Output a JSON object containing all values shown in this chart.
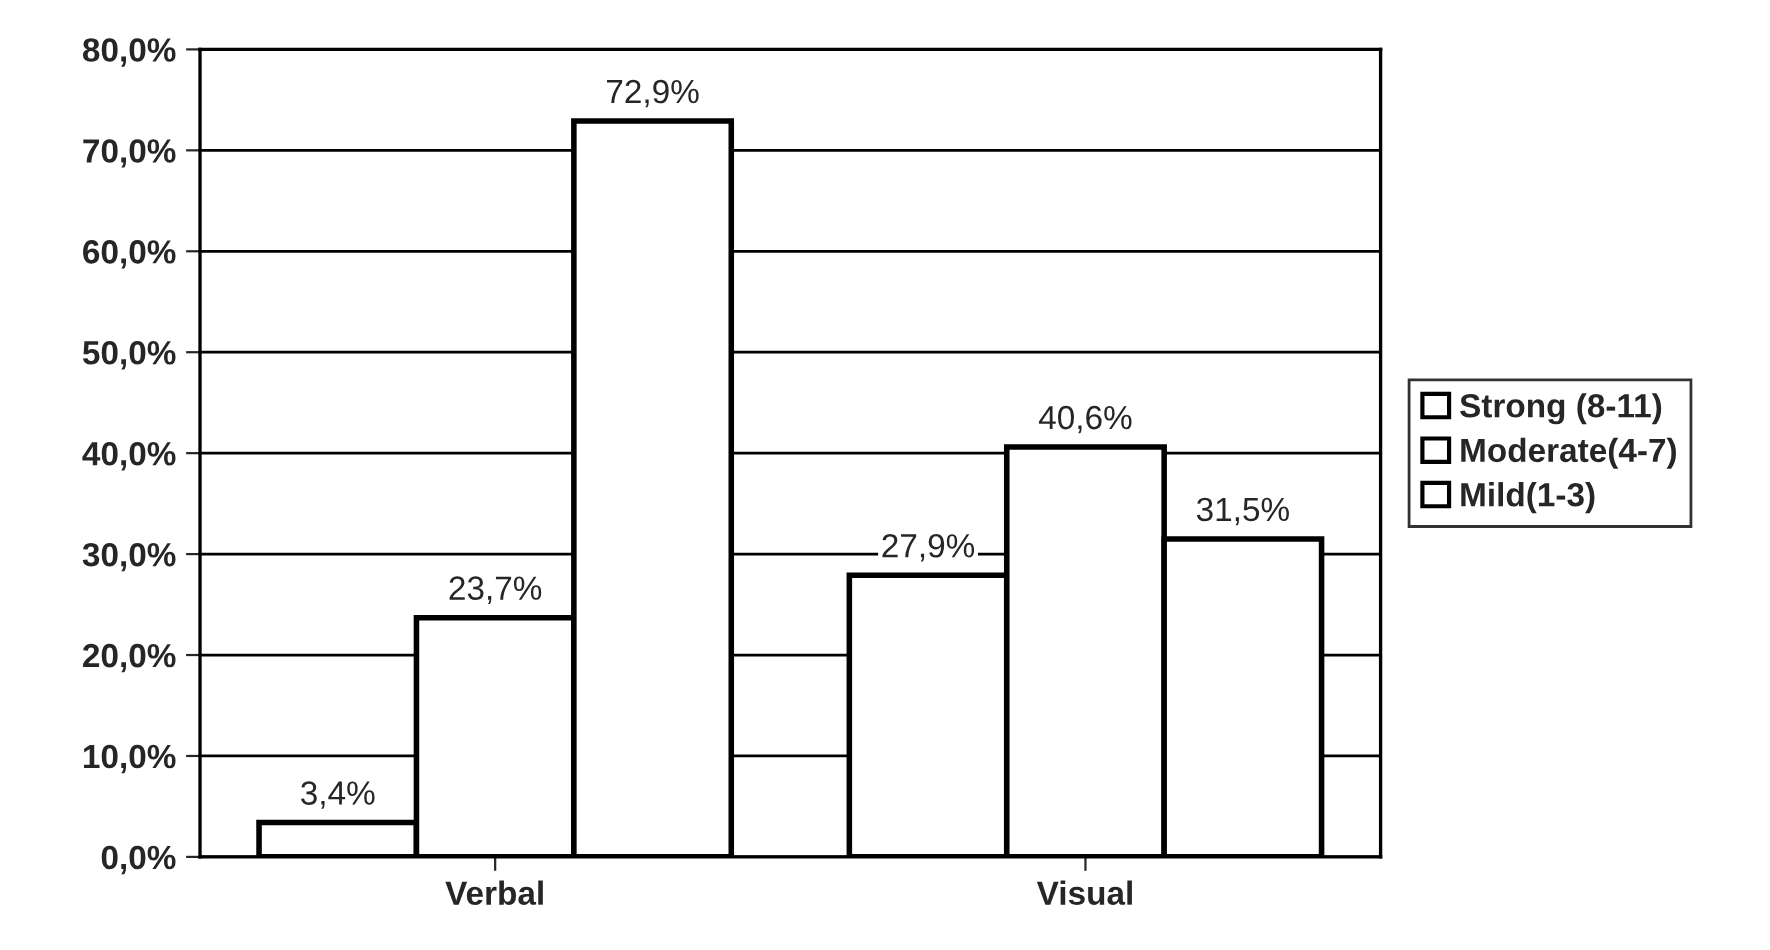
{
  "chart_data": {
    "type": "bar",
    "categories": [
      "Verbal",
      "Visual"
    ],
    "series": [
      {
        "name": "Strong (8-11)",
        "color": "#ffffff",
        "values": [
          3.4,
          27.9
        ],
        "value_labels": [
          "3,4%",
          "27,9%"
        ]
      },
      {
        "name": "Moderate(4-7)",
        "color": "#ffffff",
        "values": [
          23.7,
          40.6
        ],
        "value_labels": [
          "23,7%",
          "40,6%"
        ]
      },
      {
        "name": "Mild(1-3)",
        "color": "#ffffff",
        "values": [
          72.9,
          31.5
        ],
        "value_labels": [
          "72,9%",
          "31,5%"
        ]
      }
    ],
    "ylim": [
      0,
      80
    ],
    "yticks": [
      {
        "value": 0,
        "label": "0,0%"
      },
      {
        "value": 10,
        "label": "10,0%"
      },
      {
        "value": 20,
        "label": "20,0%"
      },
      {
        "value": 30,
        "label": "30,0%"
      },
      {
        "value": 40,
        "label": "40,0%"
      },
      {
        "value": 50,
        "label": "50,0%"
      },
      {
        "value": 60,
        "label": "60,0%"
      },
      {
        "value": 70,
        "label": "70,0%"
      },
      {
        "value": 80,
        "label": "80,0%"
      }
    ],
    "grid": "y",
    "legend": "right"
  }
}
